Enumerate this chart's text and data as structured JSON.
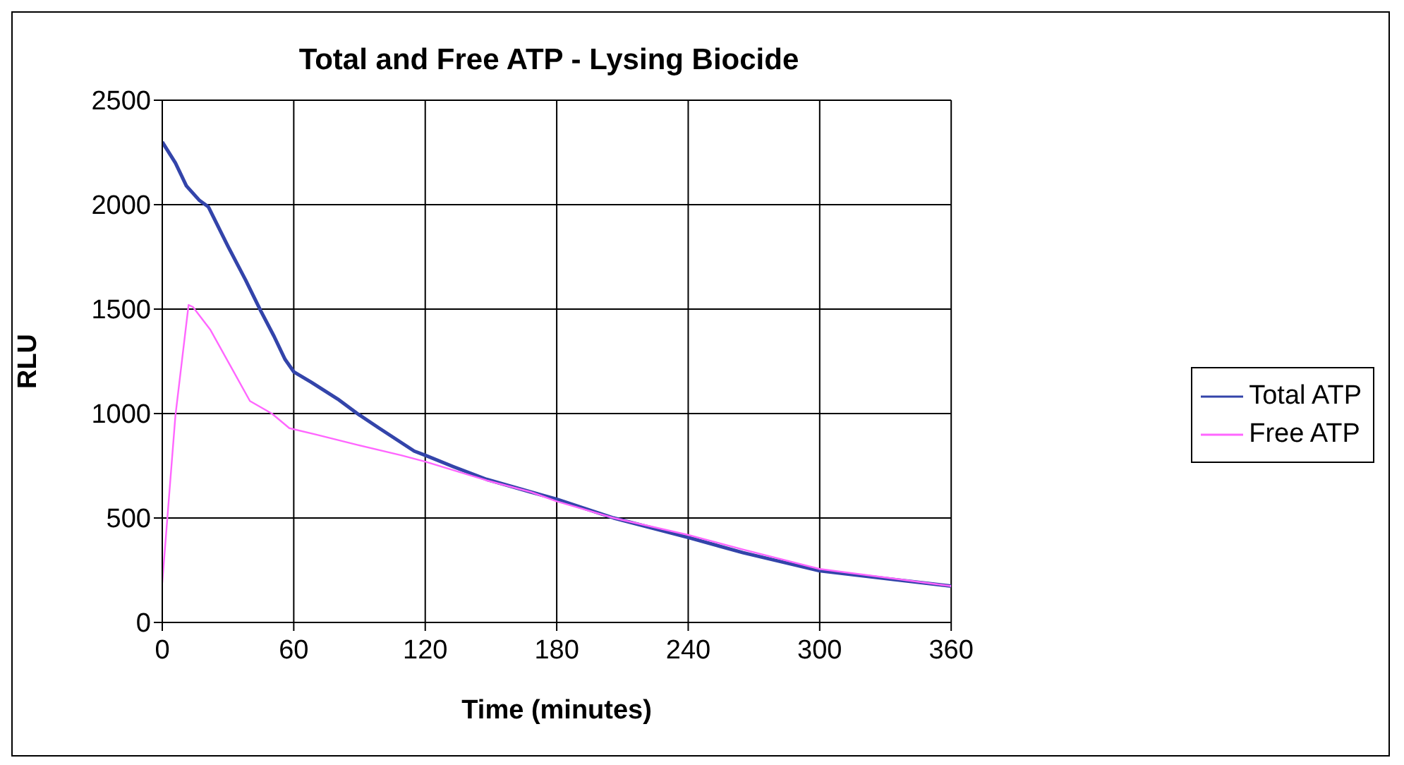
{
  "chart_data": {
    "type": "line",
    "title": "Total and Free ATP - Lysing Biocide",
    "xlabel": "Time (minutes)",
    "ylabel": "RLU",
    "xlim": [
      0,
      360
    ],
    "xticks": [
      0,
      60,
      120,
      180,
      240,
      300,
      360
    ],
    "ylim": [
      0,
      2500
    ],
    "yticks": [
      0,
      500,
      1000,
      1500,
      2000,
      2500
    ],
    "grid": true,
    "legend": "right",
    "marker": "none",
    "line_style": "solid",
    "series": [
      {
        "name": "Total ATP",
        "color": "#3344aa",
        "x": [
          0,
          6,
          11,
          17,
          21,
          30,
          38,
          45,
          51,
          56,
          60,
          68,
          80,
          89,
          99,
          115,
          120,
          133,
          148,
          168,
          180,
          206,
          240,
          265,
          300,
          360
        ],
        "values": [
          2300,
          2200,
          2090,
          2020,
          1990,
          1800,
          1640,
          1490,
          1370,
          1260,
          1200,
          1150,
          1070,
          1000,
          930,
          820,
          800,
          745,
          685,
          625,
          590,
          500,
          407,
          334,
          247,
          174
        ]
      },
      {
        "name": "Free ATP",
        "color": "#ff66ff",
        "x": [
          0,
          6,
          12,
          14,
          22,
          31,
          40,
          50,
          58,
          70,
          89,
          109,
          120,
          148,
          168,
          180,
          206,
          240,
          265,
          300,
          360
        ],
        "values": [
          190,
          990,
          1520,
          1510,
          1400,
          1230,
          1060,
          1000,
          930,
          900,
          850,
          800,
          770,
          680,
          625,
          580,
          500,
          419,
          349,
          256,
          174
        ]
      }
    ]
  }
}
